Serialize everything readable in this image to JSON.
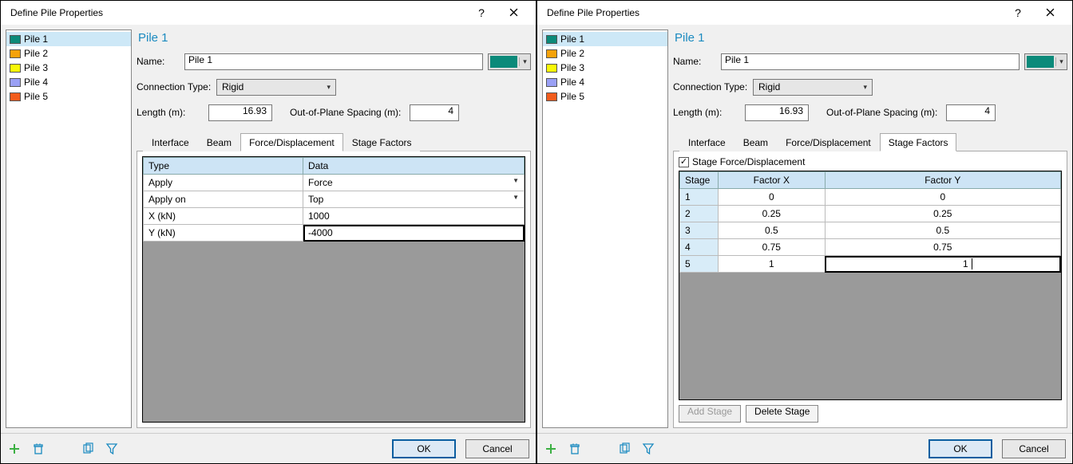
{
  "dialogs": [
    {
      "title": "Define Pile Properties",
      "piles": [
        {
          "label": "Pile 1",
          "color": "#0b8a7a",
          "selected": true
        },
        {
          "label": "Pile 2",
          "color": "#f5a20a",
          "selected": false
        },
        {
          "label": "Pile 3",
          "color": "#f8f808",
          "selected": false
        },
        {
          "label": "Pile 4",
          "color": "#9aa0f5",
          "selected": false
        },
        {
          "label": "Pile 5",
          "color": "#f25c1c",
          "selected": false
        }
      ],
      "main_title": "Pile 1",
      "labels": {
        "name": "Name:",
        "connection_type": "Connection Type:",
        "length": "Length (m):",
        "oop_spacing": "Out-of-Plane Spacing (m):"
      },
      "name_value": "Pile 1",
      "swatch_color": "#0b8a7a",
      "connection_value": "Rigid",
      "length_value": "16.93",
      "oop_value": "4",
      "tabs": [
        "Interface",
        "Beam",
        "Force/Displacement",
        "Stage Factors"
      ],
      "active_tab": 2,
      "force_table": {
        "headers": [
          "Type",
          "Data"
        ],
        "rows": [
          {
            "type": "Apply",
            "data": "Force",
            "dropdown": true,
            "editing": false
          },
          {
            "type": "Apply on",
            "data": "Top",
            "dropdown": true,
            "editing": false
          },
          {
            "type": "X (kN)",
            "data": "1000",
            "dropdown": false,
            "editing": false
          },
          {
            "type": "Y (kN)",
            "data": "-4000",
            "dropdown": false,
            "editing": true
          }
        ]
      },
      "footer": {
        "ok": "OK",
        "cancel": "Cancel"
      }
    },
    {
      "title": "Define Pile Properties",
      "piles": [
        {
          "label": "Pile 1",
          "color": "#0b8a7a",
          "selected": true
        },
        {
          "label": "Pile 2",
          "color": "#f5a20a",
          "selected": false
        },
        {
          "label": "Pile 3",
          "color": "#f8f808",
          "selected": false
        },
        {
          "label": "Pile 4",
          "color": "#9aa0f5",
          "selected": false
        },
        {
          "label": "Pile 5",
          "color": "#f25c1c",
          "selected": false
        }
      ],
      "main_title": "Pile 1",
      "labels": {
        "name": "Name:",
        "connection_type": "Connection Type:",
        "length": "Length (m):",
        "oop_spacing": "Out-of-Plane Spacing (m):"
      },
      "name_value": "Pile 1",
      "swatch_color": "#0b8a7a",
      "connection_value": "Rigid",
      "length_value": "16.93",
      "oop_value": "4",
      "tabs": [
        "Interface",
        "Beam",
        "Force/Displacement",
        "Stage Factors"
      ],
      "active_tab": 3,
      "stage_checkbox_label": "Stage Force/Displacement",
      "stage_checkbox_checked": true,
      "stage_table": {
        "headers": [
          "Stage",
          "Factor X",
          "Factor Y"
        ],
        "rows": [
          {
            "stage": "1",
            "fx": "0",
            "fy": "0",
            "editing": false
          },
          {
            "stage": "2",
            "fx": "0.25",
            "fy": "0.25",
            "editing": false
          },
          {
            "stage": "3",
            "fx": "0.5",
            "fy": "0.5",
            "editing": false
          },
          {
            "stage": "4",
            "fx": "0.75",
            "fy": "0.75",
            "editing": false
          },
          {
            "stage": "5",
            "fx": "1",
            "fy": "1",
            "editing": true
          }
        ]
      },
      "stage_buttons": {
        "add": "Add Stage",
        "delete": "Delete Stage",
        "add_disabled": true
      },
      "footer": {
        "ok": "OK",
        "cancel": "Cancel"
      }
    }
  ],
  "icons": {
    "add_color": "#3cb043",
    "trash_color": "#1a8ac0",
    "copy_color": "#1a8ac0",
    "filter_color": "#1a8ac0"
  }
}
